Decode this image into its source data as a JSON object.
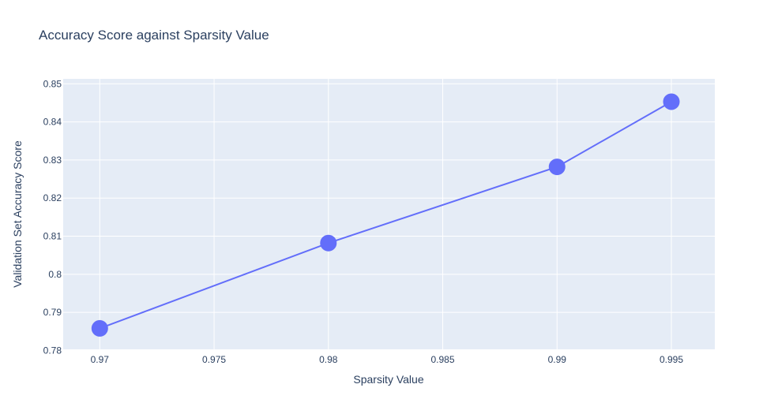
{
  "chart_data": {
    "type": "line",
    "title": "Accuracy Score against Sparsity Value",
    "xlabel": "Sparsity Value",
    "ylabel": "Validation Set Accuracy Score",
    "x": [
      0.97,
      0.98,
      0.99,
      0.995
    ],
    "y": [
      0.7858,
      0.8082,
      0.8282,
      0.8453
    ],
    "xlim": [
      0.9684,
      0.9969
    ],
    "ylim": [
      0.7803,
      0.8513
    ],
    "x_ticks": [
      "0.97",
      "0.975",
      "0.98",
      "0.985",
      "0.99",
      "0.995"
    ],
    "y_ticks": [
      "0.78",
      "0.79",
      "0.8",
      "0.81",
      "0.82",
      "0.83",
      "0.84",
      "0.85"
    ],
    "grid": true,
    "legend": false,
    "mode": "lines+markers",
    "colors": {
      "plot_background": "#e5ecf6",
      "grid": "#ffffff",
      "series": "#636efa",
      "text": "#2a3f5f"
    }
  }
}
